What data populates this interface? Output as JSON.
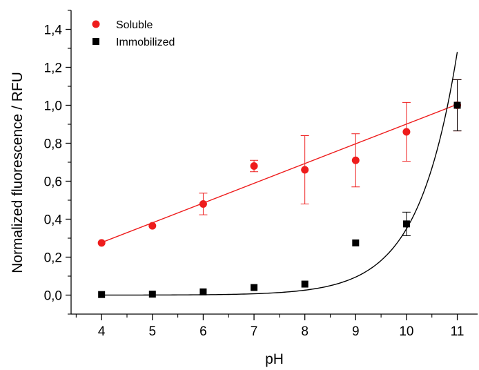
{
  "chart_data": {
    "type": "scatter",
    "xlabel": "pH",
    "ylabel": "Normalized fluorescence / RFU",
    "xlim": [
      3.4,
      11.4
    ],
    "ylim": [
      -0.1,
      1.5
    ],
    "x_ticks": [
      4,
      5,
      6,
      7,
      8,
      9,
      10,
      11
    ],
    "x_tick_labels": [
      "4",
      "5",
      "6",
      "7",
      "8",
      "9",
      "10",
      "11"
    ],
    "y_ticks": [
      0.0,
      0.2,
      0.4,
      0.6,
      0.8,
      1.0,
      1.2,
      1.4
    ],
    "y_tick_labels": [
      "0,0",
      "0,2",
      "0,4",
      "0,6",
      "0,8",
      "1,0",
      "1,2",
      "1,4"
    ],
    "grid": false,
    "legend_position": "top-left",
    "series": [
      {
        "name": "Soluble",
        "color": "#ee1c1c",
        "marker": "circle",
        "points": [
          {
            "x": 4,
            "y": 0.275
          },
          {
            "x": 5,
            "y": 0.365
          },
          {
            "x": 6,
            "y": 0.48,
            "err": 0.057
          },
          {
            "x": 7,
            "y": 0.68,
            "err": 0.03
          },
          {
            "x": 8,
            "y": 0.66,
            "err": 0.18
          },
          {
            "x": 9,
            "y": 0.71,
            "err": 0.14
          },
          {
            "x": 10,
            "y": 0.86,
            "err": 0.155
          },
          {
            "x": 11,
            "y": 1.0,
            "err": 0.135
          }
        ],
        "fit": {
          "type": "linear",
          "slope": 0.104,
          "intercept": -0.139,
          "x_range": [
            4,
            11
          ]
        }
      },
      {
        "name": "Immobilized",
        "color": "#000000",
        "marker": "square",
        "points": [
          {
            "x": 4,
            "y": 0.003
          },
          {
            "x": 5,
            "y": 0.005
          },
          {
            "x": 6,
            "y": 0.017
          },
          {
            "x": 7,
            "y": 0.04
          },
          {
            "x": 8,
            "y": 0.058
          },
          {
            "x": 9,
            "y": 0.275
          },
          {
            "x": 10,
            "y": 0.375,
            "err": 0.062
          },
          {
            "x": 11,
            "y": 1.0,
            "err": 0.135
          }
        ],
        "fit": {
          "type": "exponential",
          "y0": 0.0,
          "a": 7.89e-07,
          "rate": 1.3,
          "x_range": [
            4,
            11
          ]
        }
      }
    ]
  }
}
